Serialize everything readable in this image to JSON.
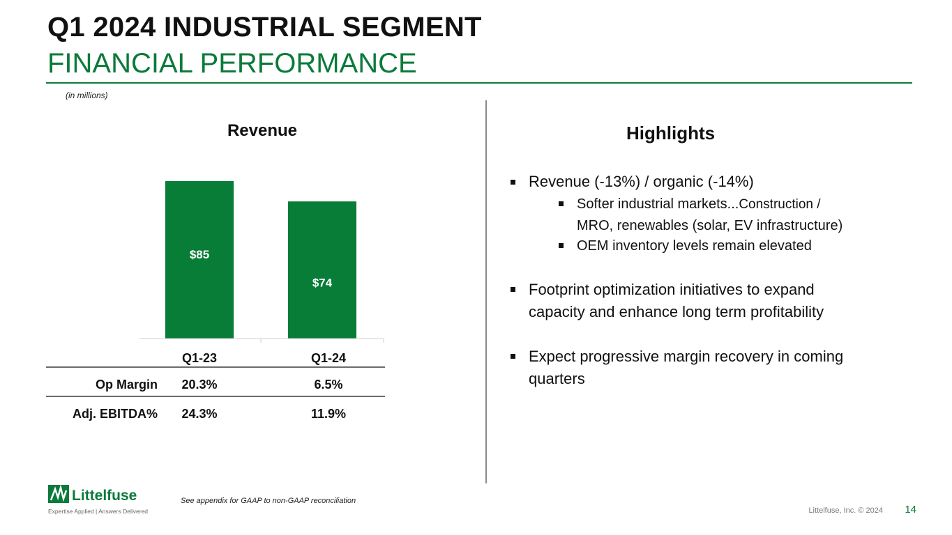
{
  "header": {
    "title": "Q1 2024 INDUSTRIAL SEGMENT",
    "subtitle": "FINANCIAL PERFORMANCE",
    "units_note": "(in millions)"
  },
  "chart_data": {
    "type": "bar",
    "title": "Revenue",
    "categories": [
      "Q1-23",
      "Q1-24"
    ],
    "values": [
      85,
      74
    ],
    "labels": [
      "$85",
      "$74"
    ],
    "ylim": [
      0,
      100
    ],
    "color": "#077d38"
  },
  "metrics_table": {
    "headers": [
      "",
      "Q1-23",
      "Q1-24"
    ],
    "rows": [
      {
        "label": "Op Margin",
        "q1_23": "20.3%",
        "q1_24": "6.5%"
      },
      {
        "label": "Adj. EBITDA%",
        "q1_23": "24.3%",
        "q1_24": "11.9%"
      }
    ]
  },
  "highlights": {
    "title": "Highlights",
    "b1": "Revenue (-13%) / organic (-14%)",
    "b1_sub1_a": "Softer industrial markets...",
    "b1_sub1_b": "Construction /",
    "b1_sub1_c": "MRO, renewables (solar, EV infrastructure)",
    "b1_sub2": "OEM inventory levels remain elevated",
    "b2_line1": "Footprint optimization initiatives to expand",
    "b2_line2": "capacity and enhance long term profitability",
    "b3_line1": "Expect progressive margin recovery in coming",
    "b3_line2": "quarters"
  },
  "footer": {
    "footnote": "See appendix for GAAP to non-GAAP reconciliation",
    "logo_name": "Littelfuse",
    "logo_tagline": "Expertise Applied | Answers Delivered",
    "copyright": "Littelfuse, Inc. © 2024",
    "page_number": "14"
  },
  "colors": {
    "brand_green": "#0b7a3a",
    "bar_green": "#077d38"
  }
}
